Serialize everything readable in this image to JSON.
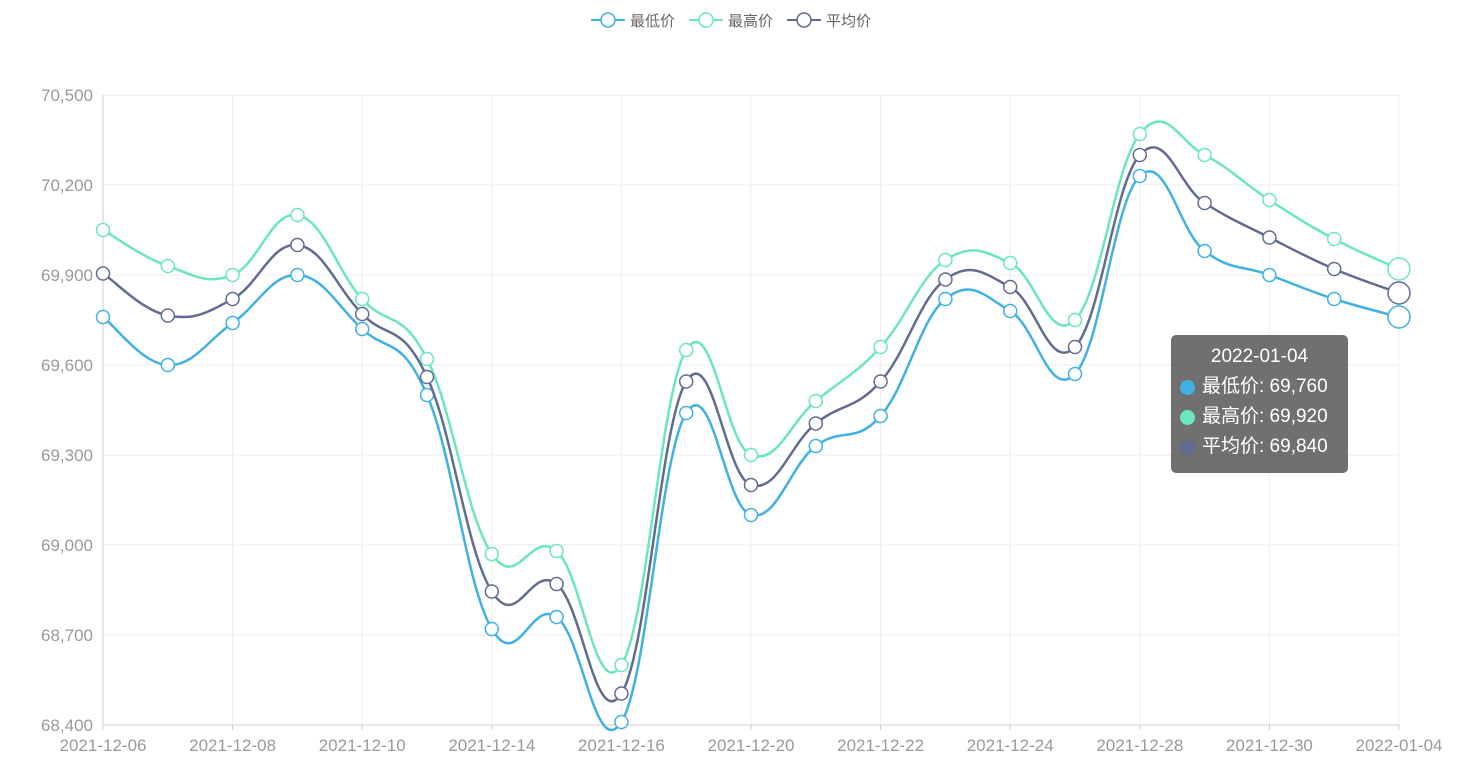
{
  "chart_data": {
    "type": "line",
    "smooth": true,
    "legend_position": "top-center",
    "grid": true,
    "x": [
      "2021-12-06",
      "2021-12-07",
      "2021-12-08",
      "2021-12-09",
      "2021-12-10",
      "2021-12-11",
      "2021-12-14",
      "2021-12-15",
      "2021-12-16",
      "2021-12-17",
      "2021-12-20",
      "2021-12-21",
      "2021-12-22",
      "2021-12-23",
      "2021-12-24",
      "2021-12-27",
      "2021-12-28",
      "2021-12-29",
      "2021-12-30",
      "2021-12-31",
      "2022-01-04"
    ],
    "x_tick_labels": [
      "2021-12-06",
      "2021-12-08",
      "2021-12-10",
      "2021-12-14",
      "2021-12-16",
      "2021-12-20",
      "2021-12-22",
      "2021-12-24",
      "2021-12-28",
      "2021-12-30",
      "2022-01-04"
    ],
    "ylim": [
      68400,
      70500
    ],
    "y_ticks": [
      "68,400",
      "68,700",
      "69,000",
      "69,300",
      "69,600",
      "69,900",
      "70,200",
      "70,500"
    ],
    "series": [
      {
        "name": "最低价",
        "color": "#3fb1e3",
        "values": [
          69760,
          69600,
          69740,
          69900,
          69720,
          69500,
          68720,
          68760,
          68410,
          69440,
          69100,
          69330,
          69430,
          69820,
          69780,
          69570,
          70230,
          69980,
          69900,
          69820,
          69760
        ]
      },
      {
        "name": "最高价",
        "color": "#6be6c1",
        "values": [
          70050,
          69930,
          69900,
          70100,
          69820,
          69620,
          68970,
          68980,
          68600,
          69650,
          69300,
          69480,
          69660,
          69950,
          69940,
          69750,
          70370,
          70300,
          70150,
          70020,
          69920
        ]
      },
      {
        "name": "平均价",
        "color": "#626c91",
        "values": [
          69905,
          69765,
          69820,
          70000,
          69770,
          69560,
          68845,
          68870,
          68505,
          69545,
          69200,
          69405,
          69545,
          69885,
          69860,
          69660,
          70300,
          70140,
          70025,
          69920,
          69840
        ]
      }
    ],
    "tooltip": {
      "title": "2022-01-04",
      "rows": [
        {
          "label": "最低价: 69,760",
          "color": "#3fb1e3"
        },
        {
          "label": "最高价: 69,920",
          "color": "#6be6c1"
        },
        {
          "label": "平均价: 69,840",
          "color": "#626c91"
        }
      ]
    }
  }
}
